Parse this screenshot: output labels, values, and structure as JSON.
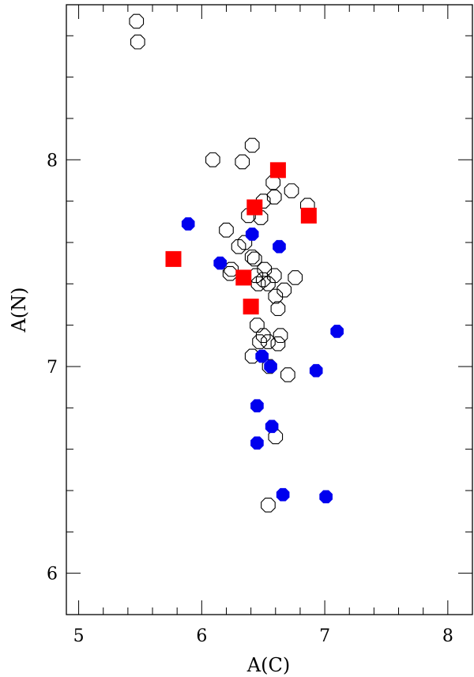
{
  "chart_data": {
    "type": "scatter",
    "xlabel": "A(C)",
    "ylabel": "A(N)",
    "xlim": [
      4.9,
      8.2
    ],
    "ylim": [
      5.8,
      8.75
    ],
    "x_ticks": [
      "5",
      "6",
      "7",
      "8"
    ],
    "y_ticks": [
      "6",
      "7",
      "8"
    ],
    "grid": false,
    "colors": {
      "open": "#000000",
      "blue": "#0000ee",
      "red": "#ff0000"
    },
    "series": [
      {
        "marker": "open-octagon",
        "points": [
          [
            5.47,
            8.67
          ],
          [
            5.48,
            8.57
          ],
          [
            6.09,
            8.0
          ],
          [
            6.33,
            7.99
          ],
          [
            6.41,
            8.07
          ],
          [
            6.58,
            7.89
          ],
          [
            6.73,
            7.85
          ],
          [
            6.86,
            7.78
          ],
          [
            6.59,
            7.82
          ],
          [
            6.5,
            7.8
          ],
          [
            6.38,
            7.73
          ],
          [
            6.48,
            7.72
          ],
          [
            6.2,
            7.66
          ],
          [
            6.3,
            7.58
          ],
          [
            6.35,
            7.6
          ],
          [
            6.41,
            7.53
          ],
          [
            6.43,
            7.52
          ],
          [
            6.24,
            7.47
          ],
          [
            6.23,
            7.45
          ],
          [
            6.44,
            7.44
          ],
          [
            6.51,
            7.47
          ],
          [
            6.59,
            7.44
          ],
          [
            6.76,
            7.43
          ],
          [
            6.5,
            7.42
          ],
          [
            6.54,
            7.4
          ],
          [
            6.46,
            7.4
          ],
          [
            6.6,
            7.34
          ],
          [
            6.67,
            7.37
          ],
          [
            6.62,
            7.28
          ],
          [
            6.45,
            7.2
          ],
          [
            6.5,
            7.15
          ],
          [
            6.64,
            7.15
          ],
          [
            6.54,
            7.12
          ],
          [
            6.47,
            7.12
          ],
          [
            6.62,
            7.11
          ],
          [
            6.41,
            7.05
          ],
          [
            6.55,
            7.0
          ],
          [
            6.7,
            6.96
          ],
          [
            6.6,
            6.66
          ],
          [
            6.54,
            6.33
          ]
        ]
      },
      {
        "marker": "filled-octagon",
        "color": "blue",
        "points": [
          [
            5.89,
            7.69
          ],
          [
            6.41,
            7.64
          ],
          [
            6.63,
            7.58
          ],
          [
            6.15,
            7.5
          ],
          [
            7.1,
            7.17
          ],
          [
            6.49,
            7.05
          ],
          [
            6.56,
            7.0
          ],
          [
            6.93,
            6.98
          ],
          [
            6.45,
            6.81
          ],
          [
            6.57,
            6.71
          ],
          [
            6.45,
            6.63
          ],
          [
            6.66,
            6.38
          ],
          [
            7.01,
            6.37
          ]
        ]
      },
      {
        "marker": "filled-square",
        "color": "red",
        "points": [
          [
            6.62,
            7.95
          ],
          [
            6.43,
            7.77
          ],
          [
            6.87,
            7.73
          ],
          [
            5.77,
            7.52
          ],
          [
            6.34,
            7.43
          ],
          [
            6.4,
            7.29
          ]
        ]
      }
    ]
  }
}
